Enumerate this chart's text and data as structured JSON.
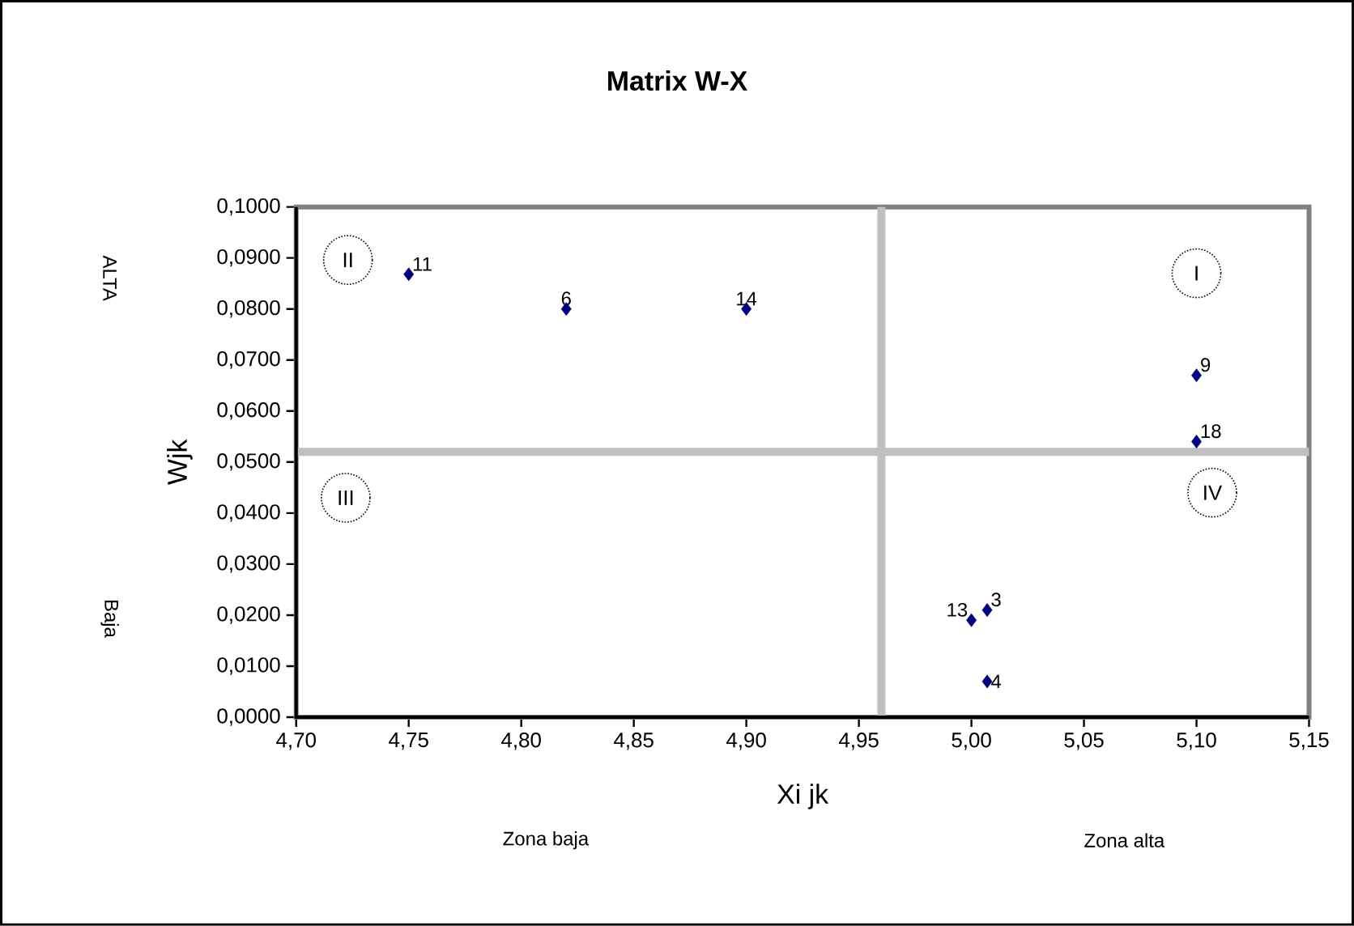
{
  "chart_data": {
    "type": "scatter",
    "title": "Matrix W-X",
    "xlabel": "Xi jk",
    "ylabel": "Wjk",
    "marker": "diamond",
    "grid": false,
    "xlim": [
      4.7,
      5.15
    ],
    "xticks": [
      {
        "value": 4.7,
        "label": "4,70"
      },
      {
        "value": 4.75,
        "label": "4,75"
      },
      {
        "value": 4.8,
        "label": "4,80"
      },
      {
        "value": 4.85,
        "label": "4,85"
      },
      {
        "value": 4.9,
        "label": "4,90"
      },
      {
        "value": 4.95,
        "label": "4,95"
      },
      {
        "value": 5.0,
        "label": "5,00"
      },
      {
        "value": 5.05,
        "label": "5,05"
      },
      {
        "value": 5.1,
        "label": "5,10"
      },
      {
        "value": 5.15,
        "label": "5,15"
      }
    ],
    "ylim": [
      0,
      0.1
    ],
    "yticks": [
      {
        "value": 0,
        "label": "0,0000"
      },
      {
        "value": 0.01,
        "label": "0,0100"
      },
      {
        "value": 0.02,
        "label": "0,0200"
      },
      {
        "value": 0.03,
        "label": "0,0300"
      },
      {
        "value": 0.04,
        "label": "0,0400"
      },
      {
        "value": 0.05,
        "label": "0,0500"
      },
      {
        "value": 0.06,
        "label": "0,0600"
      },
      {
        "value": 0.07,
        "label": "0,0700"
      },
      {
        "value": 0.08,
        "label": "0,0800"
      },
      {
        "value": 0.09,
        "label": "0,0900"
      },
      {
        "value": 0.1,
        "label": "0,1000"
      }
    ],
    "series": [
      {
        "name": "11",
        "color": "#000080",
        "x": [
          4.75
        ],
        "values": [
          0.0868
        ]
      },
      {
        "name": "6",
        "color": "#000080",
        "x": [
          4.82
        ],
        "values": [
          0.08
        ]
      },
      {
        "name": "14",
        "color": "#000080",
        "x": [
          4.9
        ],
        "values": [
          0.08
        ]
      },
      {
        "name": "9",
        "color": "#000080",
        "x": [
          5.1
        ],
        "values": [
          0.067
        ]
      },
      {
        "name": "18",
        "color": "#000080",
        "x": [
          5.1
        ],
        "values": [
          0.054
        ]
      },
      {
        "name": "13",
        "color": "#000080",
        "x": [
          5.0
        ],
        "values": [
          0.019
        ]
      },
      {
        "name": "3",
        "color": "#000080",
        "x": [
          5.007
        ],
        "values": [
          0.021
        ]
      },
      {
        "name": "4",
        "color": "#000080",
        "x": [
          5.007
        ],
        "values": [
          0.007
        ]
      }
    ],
    "ref_lines": [
      {
        "axis": "x",
        "value": 4.96,
        "color": "#c0c0c0"
      },
      {
        "axis": "y",
        "value": 0.052,
        "color": "#c0c0c0"
      }
    ],
    "annotations": [
      "Zona baja",
      "Zona alta",
      "ALTA",
      "Baja",
      {
        "text": "II",
        "x": 4.723,
        "y": 0.0896
      },
      {
        "text": "I",
        "x": 5.1,
        "y": 0.087
      },
      {
        "text": "III",
        "x": 4.722,
        "y": 0.043
      },
      {
        "text": "IV",
        "x": 5.107,
        "y": 0.044
      }
    ]
  }
}
